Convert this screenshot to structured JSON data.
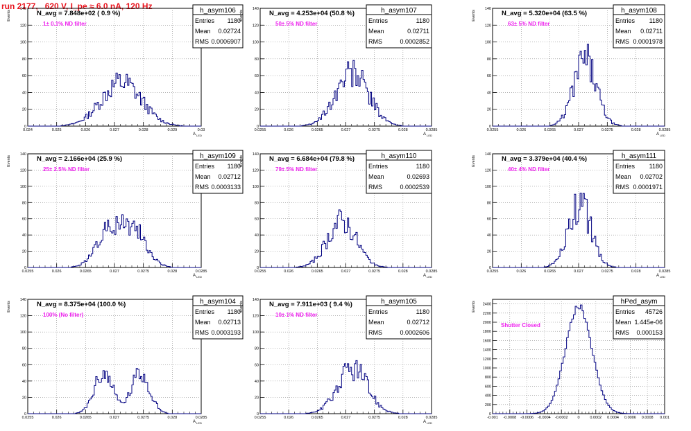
{
  "title": "run 2177,   620 V, I_pe ≈ 6.0 nA, 120 Hz",
  "colors": {
    "title": "#e8141e",
    "annotation": "#ee22ee",
    "histogram": "#000080",
    "axis": "#000000"
  },
  "chart_data": [
    {
      "type": "histogram",
      "name": "h_asym106",
      "ylabel": "Events",
      "xlabel": "A_LED",
      "xlim": [
        0.024,
        0.03
      ],
      "ylim": [
        0,
        140
      ],
      "xticks": [
        "0.024",
        "0.025",
        "0.026",
        "0.027",
        "0.028",
        "0.029",
        "0.03"
      ],
      "xtick_vals": [
        0.024,
        0.025,
        0.026,
        0.027,
        0.028,
        0.029,
        0.03
      ],
      "yticks": [
        0,
        20,
        40,
        60,
        80,
        100,
        120,
        140
      ],
      "stats": {
        "entries": "1180",
        "mean": "0.02724",
        "rms": "0.0006907"
      },
      "n_avg": "N_avg = 7.848e+02 ( 0.9 %)",
      "annotation": "1± 0.1% ND filter",
      "shape": {
        "mean": 0.02724,
        "rms": 0.0006907,
        "peak": 52,
        "sep": 0,
        "bins": 120
      }
    },
    {
      "type": "histogram",
      "name": "h_asym107",
      "ylabel": "Events",
      "xlabel": "A_LED",
      "xlim": [
        0.0255,
        0.0285
      ],
      "ylim": [
        0,
        140
      ],
      "xticks": [
        "0.0255",
        "0.026",
        "0.0265",
        "0.027",
        "0.0275",
        "0.028",
        "0.0285"
      ],
      "xtick_vals": [
        0.0255,
        0.026,
        0.0265,
        0.027,
        0.0275,
        0.028,
        0.0285
      ],
      "yticks": [
        0,
        20,
        40,
        60,
        80,
        100,
        120,
        140
      ],
      "stats": {
        "entries": "1180",
        "mean": "0.02711",
        "rms": "0.0002852"
      },
      "n_avg": "N_avg = 4.253e+04 (50.8 %)",
      "annotation": "50± 5% ND filter",
      "shape": {
        "mean": 0.02711,
        "rms": 0.0002852,
        "peak": 64,
        "sep": 0,
        "bins": 120
      }
    },
    {
      "type": "histogram",
      "name": "h_asym108",
      "ylabel": "Events",
      "xlabel": "A_LED",
      "xlim": [
        0.0255,
        0.0285
      ],
      "ylim": [
        0,
        140
      ],
      "xticks": [
        "0.0255",
        "0.026",
        "0.0265",
        "0.027",
        "0.0275",
        "0.028",
        "0.0285"
      ],
      "xtick_vals": [
        0.0255,
        0.026,
        0.0265,
        0.027,
        0.0275,
        0.028,
        0.0285
      ],
      "yticks": [
        0,
        20,
        40,
        60,
        80,
        100,
        120,
        140
      ],
      "stats": {
        "entries": "1180",
        "mean": "0.02711",
        "rms": "0.0001978"
      },
      "n_avg": "N_avg = 5.320e+04 (63.5 %)",
      "annotation": "63± 5% ND filter",
      "shape": {
        "mean": 0.02711,
        "rms": 0.0001978,
        "peak": 78,
        "sep": 0,
        "bins": 120
      }
    },
    {
      "type": "histogram",
      "name": "h_asym109",
      "ylabel": "Events",
      "xlabel": "A_LED",
      "xlim": [
        0.0255,
        0.0285
      ],
      "ylim": [
        0,
        140
      ],
      "xticks": [
        "0.0255",
        "0.026",
        "0.0265",
        "0.027",
        "0.0275",
        "0.028",
        "0.0285"
      ],
      "xtick_vals": [
        0.0255,
        0.026,
        0.0265,
        0.027,
        0.0275,
        0.028,
        0.0285
      ],
      "yticks": [
        0,
        20,
        40,
        60,
        80,
        100,
        120,
        140
      ],
      "stats": {
        "entries": "1180",
        "mean": "0.02712",
        "rms": "0.0003133"
      },
      "n_avg": "N_avg = 2.166e+04 (25.9 %)",
      "annotation": "25± 2.5% ND filter",
      "shape": {
        "mean": 0.02712,
        "rms": 0.00022,
        "peak": 48,
        "sep": 0.00022,
        "bins": 120
      }
    },
    {
      "type": "histogram",
      "name": "h_asym110",
      "ylabel": "Events",
      "xlabel": "A_LED",
      "xlim": [
        0.0255,
        0.0285
      ],
      "ylim": [
        0,
        140
      ],
      "xticks": [
        "0.0255",
        "0.026",
        "0.0265",
        "0.027",
        "0.0275",
        "0.028",
        "0.0285"
      ],
      "xtick_vals": [
        0.0255,
        0.026,
        0.0265,
        0.027,
        0.0275,
        0.028,
        0.0285
      ],
      "yticks": [
        0,
        20,
        40,
        60,
        80,
        100,
        120,
        140
      ],
      "stats": {
        "entries": "1180",
        "mean": "0.02693",
        "rms": "0.0002539"
      },
      "n_avg": "N_avg = 6.684e+04 (79.8 %)",
      "annotation": "79± 5% ND filter",
      "shape": {
        "mean": 0.02693,
        "rms": 0.0002539,
        "peak": 56,
        "sep": 0,
        "bins": 120
      }
    },
    {
      "type": "histogram",
      "name": "h_asym111",
      "ylabel": "Events",
      "xlabel": "A_LED",
      "xlim": [
        0.0255,
        0.0285
      ],
      "ylim": [
        0,
        140
      ],
      "xticks": [
        "0.0255",
        "0.026",
        "0.0265",
        "0.027",
        "0.0275",
        "0.028",
        "0.0285"
      ],
      "xtick_vals": [
        0.0255,
        0.026,
        0.0265,
        0.027,
        0.0275,
        0.028,
        0.0285
      ],
      "yticks": [
        0,
        20,
        40,
        60,
        80,
        100,
        120,
        140
      ],
      "stats": {
        "entries": "1180",
        "mean": "0.02702",
        "rms": "0.0001971"
      },
      "n_avg": "N_avg = 3.379e+04 (40.4 %)",
      "annotation": "40± 4% ND filter",
      "shape": {
        "mean": 0.02702,
        "rms": 0.0001971,
        "peak": 78,
        "sep": 0,
        "bins": 120
      }
    },
    {
      "type": "histogram",
      "name": "h_asym104",
      "ylabel": "Events",
      "xlabel": "A_LED",
      "xlim": [
        0.0255,
        0.0285
      ],
      "ylim": [
        0,
        140
      ],
      "xticks": [
        "0.0255",
        "0.026",
        "0.0265",
        "0.027",
        "0.0275",
        "0.028",
        "0.0285"
      ],
      "xtick_vals": [
        0.0255,
        0.026,
        0.0265,
        0.027,
        0.0275,
        0.028,
        0.0285
      ],
      "yticks": [
        0,
        20,
        40,
        60,
        80,
        100,
        120,
        140
      ],
      "stats": {
        "entries": "1180",
        "mean": "0.02713",
        "rms": "0.0003193"
      },
      "n_avg": "N_avg = 8.375e+04 (100.0 %)",
      "annotation": "100% (No filter)",
      "shape": {
        "mean": 0.02713,
        "rms": 0.00016,
        "peak": 55,
        "sep": 0.00032,
        "bins": 120
      }
    },
    {
      "type": "histogram",
      "name": "h_asym105",
      "ylabel": "Events",
      "xlabel": "A_LED",
      "xlim": [
        0.0255,
        0.0285
      ],
      "ylim": [
        0,
        140
      ],
      "xticks": [
        "0.0255",
        "0.026",
        "0.0265",
        "0.027",
        "0.0275",
        "0.028",
        "0.0285"
      ],
      "xtick_vals": [
        0.0255,
        0.026,
        0.0265,
        0.027,
        0.0275,
        0.028,
        0.0285
      ],
      "yticks": [
        0,
        20,
        40,
        60,
        80,
        100,
        120,
        140
      ],
      "stats": {
        "entries": "1180",
        "mean": "0.02712",
        "rms": "0.0002606"
      },
      "n_avg": "N_avg = 7.911e+03 ( 9.4 %)",
      "annotation": "10± 1% ND filter",
      "shape": {
        "mean": 0.02712,
        "rms": 0.0002606,
        "peak": 56,
        "sep": 0,
        "bins": 120
      }
    },
    {
      "type": "histogram",
      "name": "hPed_asym",
      "ylabel": "Events",
      "xlabel": "",
      "xlim": [
        -0.001,
        0.001
      ],
      "ylim": [
        0,
        2500
      ],
      "xticks": [
        "-0.001",
        "-0.0008",
        "-0.0006",
        "-0.0004",
        "-0.0002",
        "0",
        "0.0002",
        "0.0004",
        "0.0006",
        "0.0008",
        "0.001"
      ],
      "xtick_vals": [
        -0.001,
        -0.0008,
        -0.0006,
        -0.0004,
        -0.0002,
        0,
        0.0002,
        0.0004,
        0.0006,
        0.0008,
        0.001
      ],
      "yticks": [
        0,
        200,
        400,
        600,
        800,
        1000,
        1200,
        1400,
        1600,
        1800,
        2000,
        2200,
        2400
      ],
      "stats": {
        "entries": "45726",
        "mean": "1.445e-06",
        "rms": "0.000153"
      },
      "n_avg": "",
      "annotation": "Shutter Closed",
      "shape": {
        "mean": 1.4e-06,
        "rms": 0.000153,
        "peak": 2360,
        "sep": 0,
        "bins": 100
      }
    }
  ],
  "labels": {
    "entries": "Entries",
    "mean": "Mean",
    "rms": "RMS"
  }
}
